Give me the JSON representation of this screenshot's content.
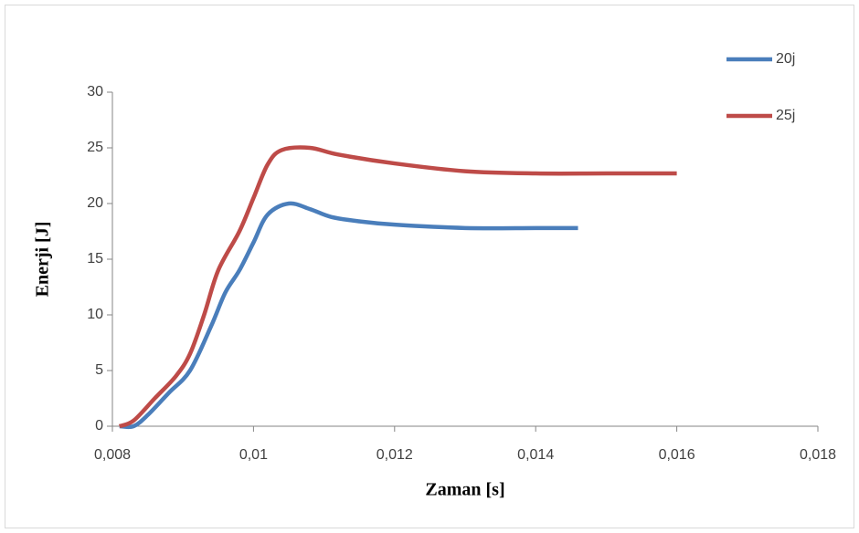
{
  "chart_data": {
    "type": "line",
    "x_label": "Zaman [s]",
    "y_label": "Enerji [J]",
    "xlim": [
      0.008,
      0.018
    ],
    "xticks": [
      {
        "value": 0.008,
        "label": "0,008"
      },
      {
        "value": 0.01,
        "label": "0,01"
      },
      {
        "value": 0.012,
        "label": "0,012"
      },
      {
        "value": 0.014,
        "label": "0,014"
      },
      {
        "value": 0.016,
        "label": "0,016"
      },
      {
        "value": 0.018,
        "label": "0,018"
      }
    ],
    "ylim": [
      0,
      30
    ],
    "yticks": [
      0,
      5,
      10,
      15,
      20,
      25,
      30
    ],
    "grid": false,
    "legend": "right",
    "series": [
      {
        "name": "20j",
        "color": "#4a7ebb",
        "x": [
          0.0081,
          0.0083,
          0.0085,
          0.0088,
          0.0091,
          0.0094,
          0.0096,
          0.0098,
          0.01,
          0.0102,
          0.0105,
          0.0108,
          0.0111,
          0.0115,
          0.012,
          0.013,
          0.014,
          0.0146
        ],
        "values": [
          0,
          0,
          1,
          3,
          5,
          9,
          12,
          14,
          16.5,
          19,
          20,
          19.5,
          18.8,
          18.4,
          18.1,
          17.8,
          17.8,
          17.8
        ]
      },
      {
        "name": "25j",
        "color": "#be4b48",
        "x": [
          0.0081,
          0.0083,
          0.0086,
          0.0089,
          0.0091,
          0.0093,
          0.0095,
          0.0098,
          0.01,
          0.0102,
          0.0104,
          0.0108,
          0.0112,
          0.012,
          0.013,
          0.014,
          0.015,
          0.016
        ],
        "values": [
          0,
          0.5,
          2.5,
          4.5,
          6.5,
          10,
          14,
          17.5,
          20.5,
          23.5,
          24.8,
          25,
          24.4,
          23.6,
          22.9,
          22.7,
          22.7,
          22.7
        ]
      }
    ]
  }
}
